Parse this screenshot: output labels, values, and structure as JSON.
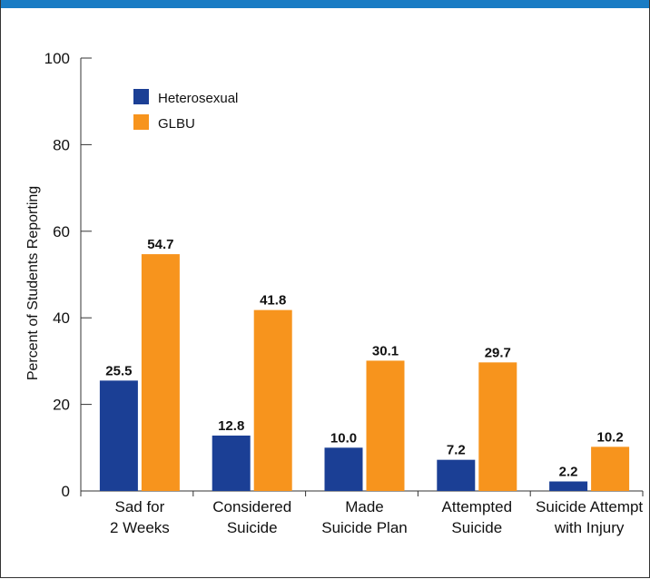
{
  "chart_data": {
    "type": "bar",
    "categories": [
      [
        "Sad for",
        "2 Weeks"
      ],
      [
        "Considered",
        "Suicide"
      ],
      [
        "Made",
        "Suicide Plan"
      ],
      [
        "Attempted",
        "Suicide"
      ],
      [
        "Suicide Attempt",
        "with Injury"
      ]
    ],
    "series": [
      {
        "name": "Heterosexual",
        "values": [
          25.5,
          12.8,
          10.0,
          7.2,
          2.2
        ],
        "color": "#1b3f95"
      },
      {
        "name": "GLBU",
        "values": [
          54.7,
          41.8,
          30.1,
          29.7,
          10.2
        ],
        "color": "#f7941d"
      }
    ],
    "value_labels": [
      [
        "25.5",
        "12.8",
        "10.0",
        "7.2",
        "2.2"
      ],
      [
        "54.7",
        "41.8",
        "30.1",
        "29.7",
        "10.2"
      ]
    ],
    "yticks": [
      "0",
      "20",
      "40",
      "60",
      "80",
      "100"
    ],
    "ylabel": "Percent of Students Reporting",
    "xlabel": "",
    "title": "",
    "ylim": [
      0,
      100
    ],
    "grid": false,
    "legend_position": "top-left"
  },
  "colors": {
    "top_band": "#1a7cc4",
    "axis": "#333333"
  }
}
